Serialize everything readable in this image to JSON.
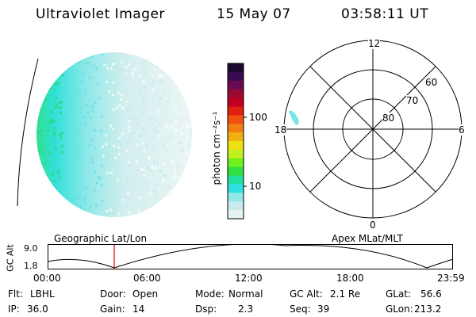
{
  "header": {
    "title": "Ultraviolet Imager",
    "date": "15 May 07",
    "time": "03:58:11 UT"
  },
  "colorbar": {
    "label": "photon cm⁻²s⁻¹",
    "ticks": [
      "100",
      "10"
    ],
    "colors": [
      "#1a0a30",
      "#3a0a50",
      "#6a0a50",
      "#9a0a30",
      "#c00020",
      "#e02010",
      "#f05010",
      "#f08010",
      "#f0b010",
      "#f0e010",
      "#c0f020",
      "#70f020",
      "#30e040",
      "#20e0a0",
      "#30e0e0",
      "#90e8e8",
      "#c8ecec",
      "#e6f2f2"
    ]
  },
  "polar": {
    "mlt_labels": {
      "top": "12",
      "left": "18",
      "right": "6",
      "bottom": "0"
    },
    "lat_labels": [
      "60",
      "70",
      "80"
    ]
  },
  "timeline": {
    "left_title": "Geographic Lat/Lon",
    "right_title": "Apex MLat/MLT",
    "axis_label": "GC Alt",
    "y_ticks": [
      "9.0",
      "1.8"
    ],
    "x_ticks": [
      "00:00",
      "06:00",
      "12:00",
      "18:00",
      "23:59"
    ]
  },
  "status": {
    "flt_label": "Flt:",
    "flt_value": "LBHL",
    "door_label": "Door:",
    "door_value": "Open",
    "mode_label": "Mode:",
    "mode_value": "Normal",
    "gcalt_label": "GC Alt:",
    "gcalt_value": "2.1 Re",
    "glat_label": "GLat:",
    "glat_value": "56.6",
    "ip_label": "IP:",
    "ip_value": "36.0",
    "gain_label": "Gain:",
    "gain_value": "14",
    "dsp_label": "Dsp:",
    "dsp_value": "2.3",
    "seq_label": "Seq:",
    "seq_value": "39",
    "glon_label": "GLon:",
    "glon_value": "213.2"
  }
}
